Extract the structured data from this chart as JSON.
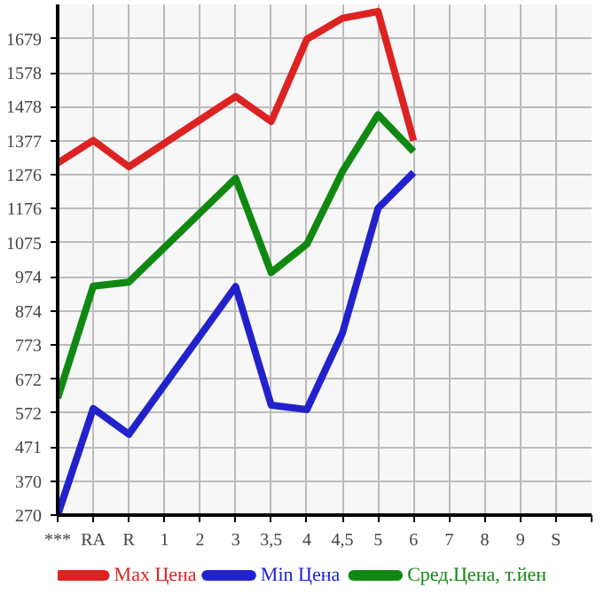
{
  "chart_data": {
    "type": "line",
    "categories": [
      "***",
      "RA",
      "R",
      "1",
      "2",
      "3",
      "3,5",
      "4",
      "4,5",
      "5",
      "6",
      "7",
      "8",
      "9",
      "S",
      null
    ],
    "series": [
      {
        "name": "Max Цена",
        "color": "#dd2222",
        "values": [
          1311,
          1378,
          1300,
          null,
          null,
          1508,
          1434,
          1677,
          1739,
          1759,
          1377,
          null,
          null,
          null,
          null,
          null
        ]
      },
      {
        "name": "Min Цена",
        "color": "#2222cc",
        "values": [
          270,
          585,
          509,
          null,
          null,
          946,
          595,
          582,
          808,
          1177,
          1283,
          null,
          null,
          null,
          null,
          null
        ]
      },
      {
        "name": "Сред.Цена, т.йен",
        "color": "#118811",
        "values": [
          616,
          947,
          959,
          null,
          null,
          1266,
          987,
          1071,
          1286,
          1454,
          1345,
          null,
          null,
          null,
          null,
          null
        ]
      }
    ],
    "ylim": [
      270,
      1780
    ],
    "yticks": [
      270,
      370,
      471,
      572,
      672,
      773,
      874,
      974,
      1075,
      1176,
      1276,
      1377,
      1478,
      1578,
      1679
    ],
    "grid": true,
    "legend": "bottom",
    "marker": "none",
    "line_style": "solid"
  }
}
